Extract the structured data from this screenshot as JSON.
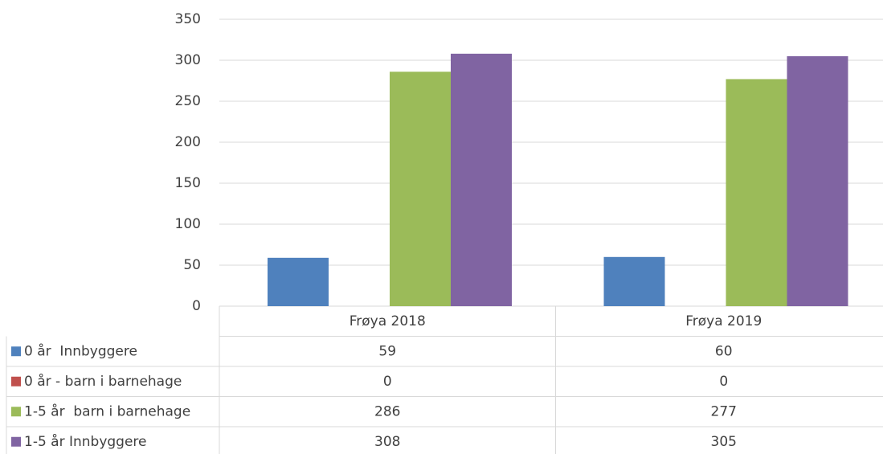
{
  "chart_data": {
    "type": "bar",
    "categories": [
      "Frøya 2018",
      "Frøya 2019"
    ],
    "series": [
      {
        "name": "0 år  Innbyggere",
        "color": "#4f81bd",
        "values": [
          59,
          60
        ]
      },
      {
        "name": "0 år - barn i barnehage",
        "color": "#c0504d",
        "values": [
          0,
          0
        ]
      },
      {
        "name": "1-5 år  barn i barnehage",
        "color": "#9bbb59",
        "values": [
          286,
          277
        ]
      },
      {
        "name": "1-5 år Innbyggere",
        "color": "#8064a2",
        "values": [
          308,
          305
        ]
      }
    ],
    "ylim": [
      0,
      350
    ],
    "yticks": [
      0,
      50,
      100,
      150,
      200,
      250,
      300,
      350
    ],
    "grid": true
  }
}
